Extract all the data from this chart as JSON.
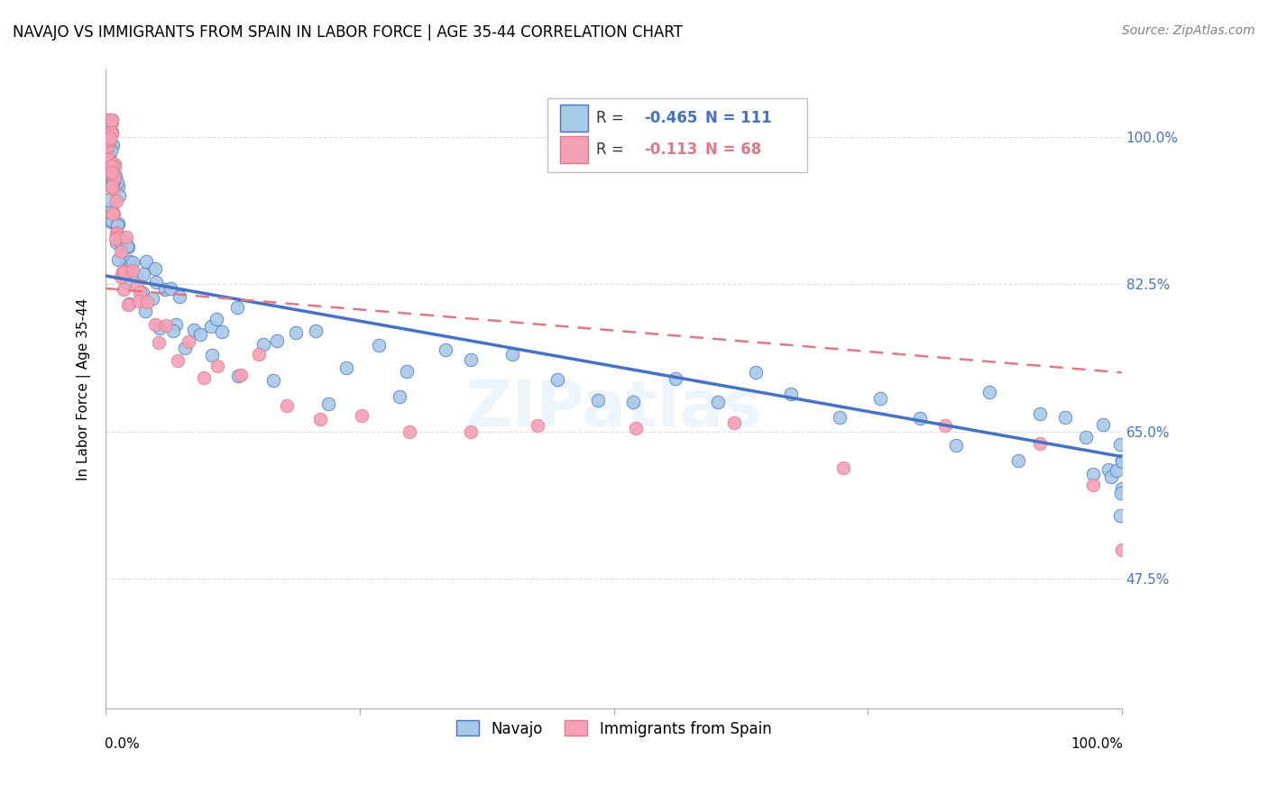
{
  "title": "NAVAJO VS IMMIGRANTS FROM SPAIN IN LABOR FORCE | AGE 35-44 CORRELATION CHART",
  "source": "Source: ZipAtlas.com",
  "ylabel": "In Labor Force | Age 35-44",
  "legend_label1": "Navajo",
  "legend_label2": "Immigrants from Spain",
  "R1": -0.465,
  "N1": 111,
  "R2": -0.113,
  "N2": 68,
  "y_ticks": [
    0.475,
    0.65,
    0.825,
    1.0
  ],
  "y_tick_labels": [
    "47.5%",
    "65.0%",
    "82.5%",
    "100.0%"
  ],
  "xlim": [
    0.0,
    1.0
  ],
  "ylim": [
    0.32,
    1.08
  ],
  "color_navajo": "#a8c8e8",
  "color_spain": "#f4a0b5",
  "color_navajo_line": "#4472c4",
  "color_spain_line": "#e07888",
  "background_color": "#ffffff",
  "grid_color": "#cccccc",
  "watermark": "ZIPatlas",
  "navajo_x": [
    0.001,
    0.001,
    0.001,
    0.002,
    0.002,
    0.002,
    0.002,
    0.002,
    0.003,
    0.003,
    0.003,
    0.003,
    0.003,
    0.004,
    0.004,
    0.004,
    0.004,
    0.005,
    0.005,
    0.005,
    0.005,
    0.006,
    0.006,
    0.006,
    0.007,
    0.007,
    0.007,
    0.008,
    0.008,
    0.009,
    0.009,
    0.01,
    0.01,
    0.011,
    0.012,
    0.013,
    0.014,
    0.015,
    0.016,
    0.017,
    0.018,
    0.02,
    0.022,
    0.024,
    0.026,
    0.028,
    0.03,
    0.033,
    0.036,
    0.04,
    0.044,
    0.048,
    0.053,
    0.058,
    0.064,
    0.07,
    0.077,
    0.085,
    0.093,
    0.1,
    0.11,
    0.12,
    0.13,
    0.15,
    0.17,
    0.19,
    0.21,
    0.24,
    0.27,
    0.3,
    0.33,
    0.36,
    0.4,
    0.44,
    0.48,
    0.52,
    0.56,
    0.6,
    0.64,
    0.68,
    0.72,
    0.76,
    0.8,
    0.84,
    0.87,
    0.9,
    0.92,
    0.94,
    0.96,
    0.97,
    0.98,
    0.985,
    0.99,
    0.995,
    1.0,
    1.0,
    1.0,
    1.0,
    1.0,
    1.0,
    0.015,
    0.025,
    0.035,
    0.05,
    0.065,
    0.08,
    0.1,
    0.13,
    0.16,
    0.22,
    0.29
  ],
  "navajo_y": [
    1.0,
    1.0,
    1.0,
    1.0,
    1.0,
    1.0,
    1.0,
    1.0,
    1.0,
    1.0,
    1.0,
    1.0,
    1.0,
    1.0,
    1.0,
    0.98,
    0.96,
    1.0,
    1.0,
    0.98,
    0.96,
    1.0,
    0.98,
    0.96,
    0.98,
    0.96,
    0.94,
    0.96,
    0.94,
    0.96,
    0.94,
    0.94,
    0.92,
    0.92,
    0.91,
    0.9,
    0.89,
    0.88,
    0.87,
    0.87,
    0.86,
    0.85,
    0.84,
    0.85,
    0.84,
    0.83,
    0.82,
    0.83,
    0.82,
    0.81,
    0.82,
    0.81,
    0.8,
    0.81,
    0.8,
    0.79,
    0.8,
    0.79,
    0.78,
    0.79,
    0.78,
    0.77,
    0.78,
    0.77,
    0.76,
    0.75,
    0.76,
    0.75,
    0.74,
    0.73,
    0.74,
    0.73,
    0.72,
    0.71,
    0.72,
    0.71,
    0.7,
    0.69,
    0.7,
    0.69,
    0.68,
    0.67,
    0.68,
    0.67,
    0.66,
    0.65,
    0.66,
    0.65,
    0.64,
    0.63,
    0.64,
    0.63,
    0.62,
    0.61,
    0.62,
    0.61,
    0.6,
    0.59,
    0.58,
    0.57,
    0.86,
    0.84,
    0.82,
    0.8,
    0.78,
    0.76,
    0.74,
    0.72,
    0.7,
    0.68,
    0.66
  ],
  "spain_x": [
    0.001,
    0.001,
    0.001,
    0.001,
    0.001,
    0.002,
    0.002,
    0.002,
    0.002,
    0.003,
    0.003,
    0.003,
    0.003,
    0.004,
    0.004,
    0.004,
    0.005,
    0.005,
    0.005,
    0.006,
    0.006,
    0.007,
    0.007,
    0.008,
    0.008,
    0.009,
    0.009,
    0.01,
    0.011,
    0.012,
    0.013,
    0.014,
    0.015,
    0.016,
    0.018,
    0.02,
    0.022,
    0.025,
    0.028,
    0.032,
    0.036,
    0.04,
    0.046,
    0.052,
    0.06,
    0.07,
    0.082,
    0.095,
    0.11,
    0.13,
    0.15,
    0.18,
    0.21,
    0.25,
    0.3,
    0.36,
    0.43,
    0.52,
    0.62,
    0.73,
    0.83,
    0.92,
    0.97,
    1.0,
    0.005,
    0.008,
    0.012,
    0.018
  ],
  "spain_y": [
    1.0,
    1.0,
    1.0,
    1.0,
    1.0,
    1.0,
    1.0,
    1.0,
    1.0,
    1.0,
    1.0,
    1.0,
    1.0,
    1.0,
    1.0,
    1.0,
    1.0,
    1.0,
    0.98,
    1.0,
    0.98,
    0.96,
    0.94,
    0.96,
    0.94,
    0.92,
    0.9,
    0.92,
    0.9,
    0.88,
    0.87,
    0.86,
    0.85,
    0.84,
    0.83,
    0.84,
    0.83,
    0.82,
    0.81,
    0.82,
    0.81,
    0.8,
    0.79,
    0.78,
    0.77,
    0.76,
    0.75,
    0.74,
    0.73,
    0.72,
    0.71,
    0.7,
    0.69,
    0.68,
    0.67,
    0.66,
    0.65,
    0.64,
    0.63,
    0.62,
    0.61,
    0.6,
    0.59,
    0.55,
    0.96,
    0.94,
    0.92,
    0.88
  ]
}
